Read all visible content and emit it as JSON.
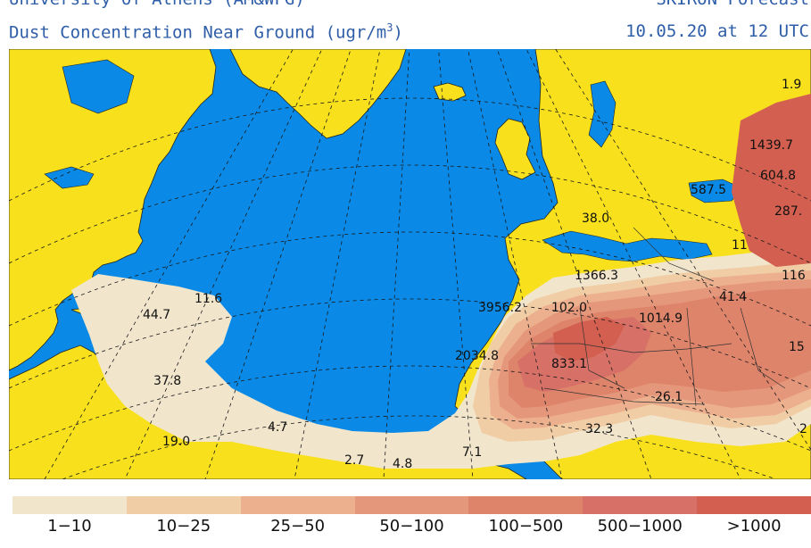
{
  "header": {
    "source": "University of Athens (AM&WFG)",
    "forecast_label": "SKIRON Forecast",
    "title": "Dust Concentration Near Ground (ugr/m",
    "title_exp": "3",
    "title_close": ")",
    "valid_time": "10.05.20 at 12 UTC"
  },
  "colors": {
    "ocean": "#0a8ae6",
    "land": "#f8e11c",
    "graticule": "#1a1a1a"
  },
  "legend": {
    "items": [
      {
        "label": "1−10",
        "color": "#f1e5cc"
      },
      {
        "label": "10−25",
        "color": "#f1cda6"
      },
      {
        "label": "25−50",
        "color": "#ecb08e"
      },
      {
        "label": "50−100",
        "color": "#e5977c"
      },
      {
        "label": "100−500",
        "color": "#de846b"
      },
      {
        "label": "500−1000",
        "color": "#d77066"
      },
      {
        "label": ">1000",
        "color": "#d25f4f"
      }
    ]
  },
  "map_values": [
    {
      "id": "v-1-9",
      "text": "1.9"
    },
    {
      "id": "v-1439-7",
      "text": "1439.7"
    },
    {
      "id": "v-604-8",
      "text": "604.8"
    },
    {
      "id": "v-587-5",
      "text": "587.5"
    },
    {
      "id": "v-287",
      "text": "287."
    },
    {
      "id": "v-38-0",
      "text": "38.0"
    },
    {
      "id": "v-11",
      "text": "11"
    },
    {
      "id": "v-1366-3",
      "text": "1366.3"
    },
    {
      "id": "v-116",
      "text": "116"
    },
    {
      "id": "v-11-6",
      "text": "11.6"
    },
    {
      "id": "v-3956-2",
      "text": "3956.2"
    },
    {
      "id": "v-102-0",
      "text": "102.0"
    },
    {
      "id": "v-1014-9",
      "text": "1014.9"
    },
    {
      "id": "v-41-4",
      "text": "41.4"
    },
    {
      "id": "v-44-7",
      "text": "44.7"
    },
    {
      "id": "v-15",
      "text": "15"
    },
    {
      "id": "v-2034-8",
      "text": "2034.8"
    },
    {
      "id": "v-833-1",
      "text": "833.1"
    },
    {
      "id": "v-37-8",
      "text": "37.8"
    },
    {
      "id": "v-26-1",
      "text": "26.1"
    },
    {
      "id": "v-4-7",
      "text": "4.7"
    },
    {
      "id": "v-32-3",
      "text": "32.3"
    },
    {
      "id": "v-2",
      "text": "2"
    },
    {
      "id": "v-19-0",
      "text": "19.0"
    },
    {
      "id": "v-7-1",
      "text": "7.1"
    },
    {
      "id": "v-2-7",
      "text": "2.7"
    },
    {
      "id": "v-4-8",
      "text": "4.8"
    }
  ]
}
